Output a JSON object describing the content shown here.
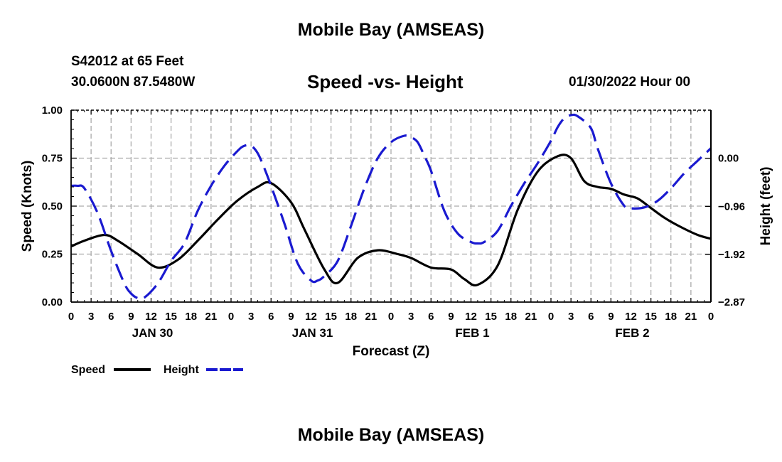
{
  "header": {
    "title": "Mobile Bay (AMSEAS)",
    "station": "S42012 at 65 Feet",
    "coords": "30.0600N  87.5480W",
    "subtitle": "Speed -vs- Height",
    "datetime": "01/30/2022 Hour 00"
  },
  "footer": {
    "title": "Mobile Bay (AMSEAS)"
  },
  "chart_data": {
    "type": "line",
    "title": "Speed -vs- Height",
    "xlabel": "Forecast (Z)",
    "ylabel": "Speed (Knots)",
    "y2label": "Height (feet)",
    "xlim": [
      0,
      96
    ],
    "ylim": [
      0,
      1.0
    ],
    "y2lim": [
      -2.87,
      0.96
    ],
    "x_tick_step_hours": 3,
    "x_tick_labels": [
      "0",
      "3",
      "6",
      "9",
      "12",
      "15",
      "18",
      "21",
      "0",
      "3",
      "6",
      "9",
      "12",
      "15",
      "18",
      "21",
      "0",
      "3",
      "6",
      "9",
      "12",
      "15",
      "18",
      "21",
      "0",
      "3",
      "6",
      "9",
      "12",
      "15",
      "18",
      "21",
      "0"
    ],
    "y_ticks": [
      0.0,
      0.25,
      0.5,
      0.75,
      1.0
    ],
    "y_tick_labels": [
      "0.00",
      "0.25",
      "0.50",
      "0.75",
      "1.00"
    ],
    "y2_ticks": [
      -2.87,
      -1.92,
      -0.96,
      0.0
    ],
    "y2_tick_labels": [
      "−2.87",
      "−1.92",
      "−0.96",
      "0.00"
    ],
    "date_labels": [
      {
        "text": "JAN 30",
        "hour": 12
      },
      {
        "text": "JAN 31",
        "hour": 36
      },
      {
        "text": "FEB 1",
        "hour": 60
      },
      {
        "text": "FEB 2",
        "hour": 84
      }
    ],
    "grid": true,
    "legend": [
      {
        "label": "Speed",
        "color": "#000000",
        "style": "solid"
      },
      {
        "label": "Height",
        "color": "#1a1ad0",
        "style": "dashed"
      }
    ],
    "series": [
      {
        "name": "Speed",
        "axis": "left",
        "color": "#000000",
        "x": [
          0,
          2,
          5,
          7,
          10,
          13,
          16,
          19,
          22,
          25,
          28,
          30,
          33,
          35,
          38,
          40,
          43,
          46,
          49,
          51,
          54,
          57,
          59,
          61,
          64,
          67,
          70,
          73,
          75,
          77,
          79,
          81,
          83,
          85,
          87,
          89,
          91,
          94,
          96
        ],
        "y": [
          0.29,
          0.32,
          0.35,
          0.32,
          0.25,
          0.18,
          0.22,
          0.32,
          0.43,
          0.53,
          0.6,
          0.62,
          0.52,
          0.38,
          0.17,
          0.1,
          0.23,
          0.27,
          0.25,
          0.23,
          0.18,
          0.17,
          0.12,
          0.09,
          0.19,
          0.48,
          0.68,
          0.76,
          0.75,
          0.63,
          0.6,
          0.59,
          0.56,
          0.54,
          0.49,
          0.44,
          0.4,
          0.35,
          0.33
        ]
      },
      {
        "name": "Height",
        "axis": "right",
        "color": "#1a1ad0",
        "x": [
          0,
          1,
          2,
          4,
          6,
          8,
          9,
          10,
          11,
          13,
          15,
          17,
          19,
          21,
          23,
          25,
          26,
          27,
          28,
          29,
          30,
          32,
          34,
          36,
          37,
          38,
          40,
          42,
          44,
          46,
          48,
          50,
          51,
          52,
          53,
          54,
          56,
          58,
          60,
          61,
          62,
          64,
          66,
          68,
          70,
          72,
          73,
          74,
          75,
          76,
          78,
          79,
          81,
          83,
          84,
          86,
          88,
          90,
          92,
          94,
          96
        ],
        "y": [
          -0.55,
          -0.55,
          -0.6,
          -1.1,
          -1.85,
          -2.5,
          -2.7,
          -2.79,
          -2.78,
          -2.5,
          -2.05,
          -1.7,
          -1.05,
          -0.55,
          -0.15,
          0.15,
          0.25,
          0.25,
          0.1,
          -0.2,
          -0.55,
          -1.3,
          -2.1,
          -2.44,
          -2.44,
          -2.35,
          -2.05,
          -1.35,
          -0.6,
          0.0,
          0.32,
          0.45,
          0.42,
          0.32,
          0.05,
          -0.25,
          -1.05,
          -1.5,
          -1.67,
          -1.7,
          -1.67,
          -1.45,
          -0.95,
          -0.5,
          -0.1,
          0.35,
          0.62,
          0.8,
          0.86,
          0.84,
          0.6,
          0.2,
          -0.5,
          -0.95,
          -1.0,
          -0.98,
          -0.85,
          -0.6,
          -0.3,
          -0.05,
          0.2
        ]
      }
    ]
  }
}
